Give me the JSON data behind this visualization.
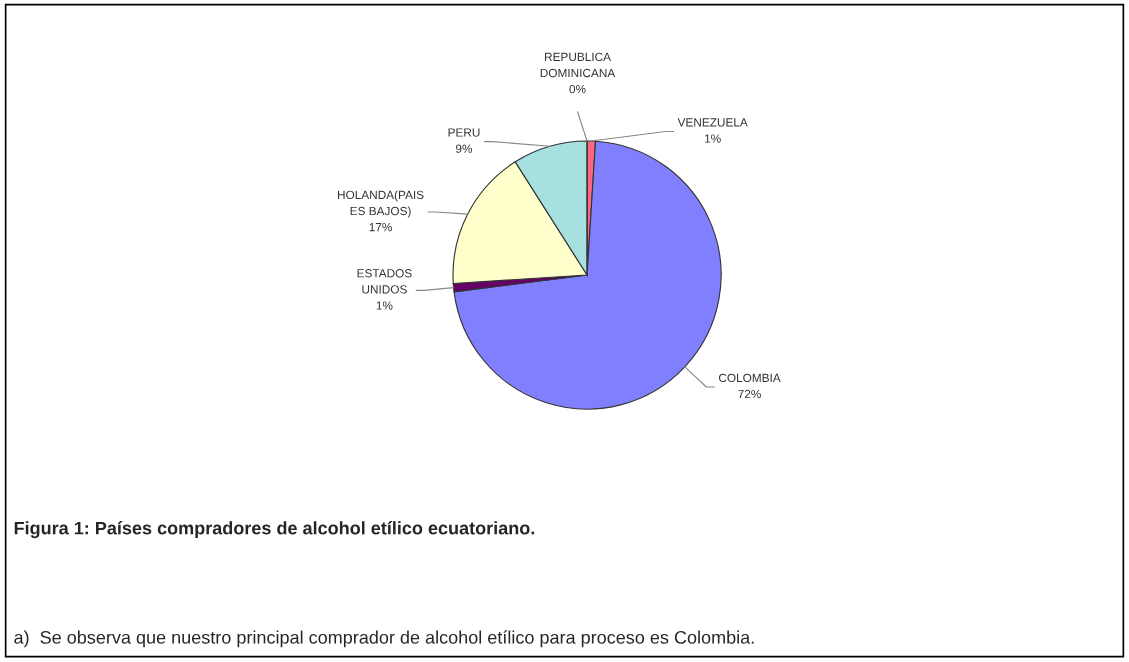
{
  "chart_data": {
    "type": "pie",
    "categories": [
      "VENEZUELA",
      "COLOMBIA",
      "ESTADOS\nUNIDOS",
      "HOLANDA(PAIS\nES BAJOS)",
      "PERU",
      "REPUBLICA\nDOMINICANA"
    ],
    "values": [
      1,
      72,
      1,
      17,
      9,
      0
    ],
    "value_labels": [
      "1%",
      "72%",
      "1%",
      "17%",
      "9%",
      "0%"
    ],
    "colors": [
      "#ff6680",
      "#8080ff",
      "#660066",
      "#ffffcc",
      "#a6e0e0",
      "#993366"
    ],
    "annotations": [
      "Figura 1: Países compradores de alcohol etílico ecuatoriano.",
      "a)  Se observa que nuestro principal comprador de alcohol etílico para proceso es Colombia."
    ]
  }
}
